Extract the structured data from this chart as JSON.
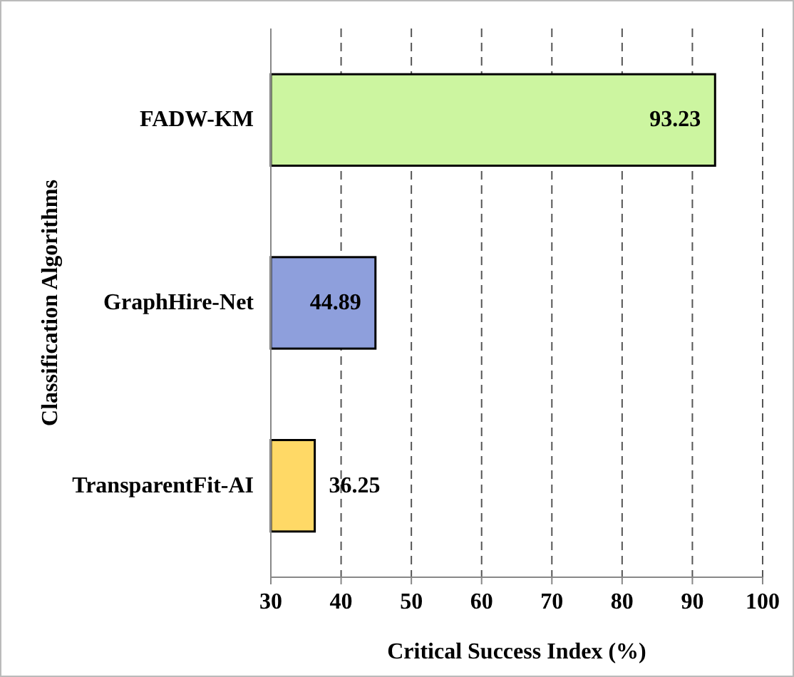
{
  "chart_data": {
    "type": "bar",
    "orientation": "horizontal",
    "xlabel": "Critical Success Index (%)",
    "ylabel": "Classification Algorithms",
    "categories": [
      "FADW-KM",
      "GraphHire-Net",
      "TransparentFit-AI"
    ],
    "values": [
      93.23,
      44.89,
      36.25
    ],
    "colors": [
      "#ccf5a0",
      "#8e9fdc",
      "#ffd966"
    ],
    "xlim": [
      30,
      100
    ],
    "xticks": [
      30,
      40,
      50,
      60,
      70,
      80,
      90,
      100
    ],
    "grid": "x",
    "data_labels": true
  }
}
